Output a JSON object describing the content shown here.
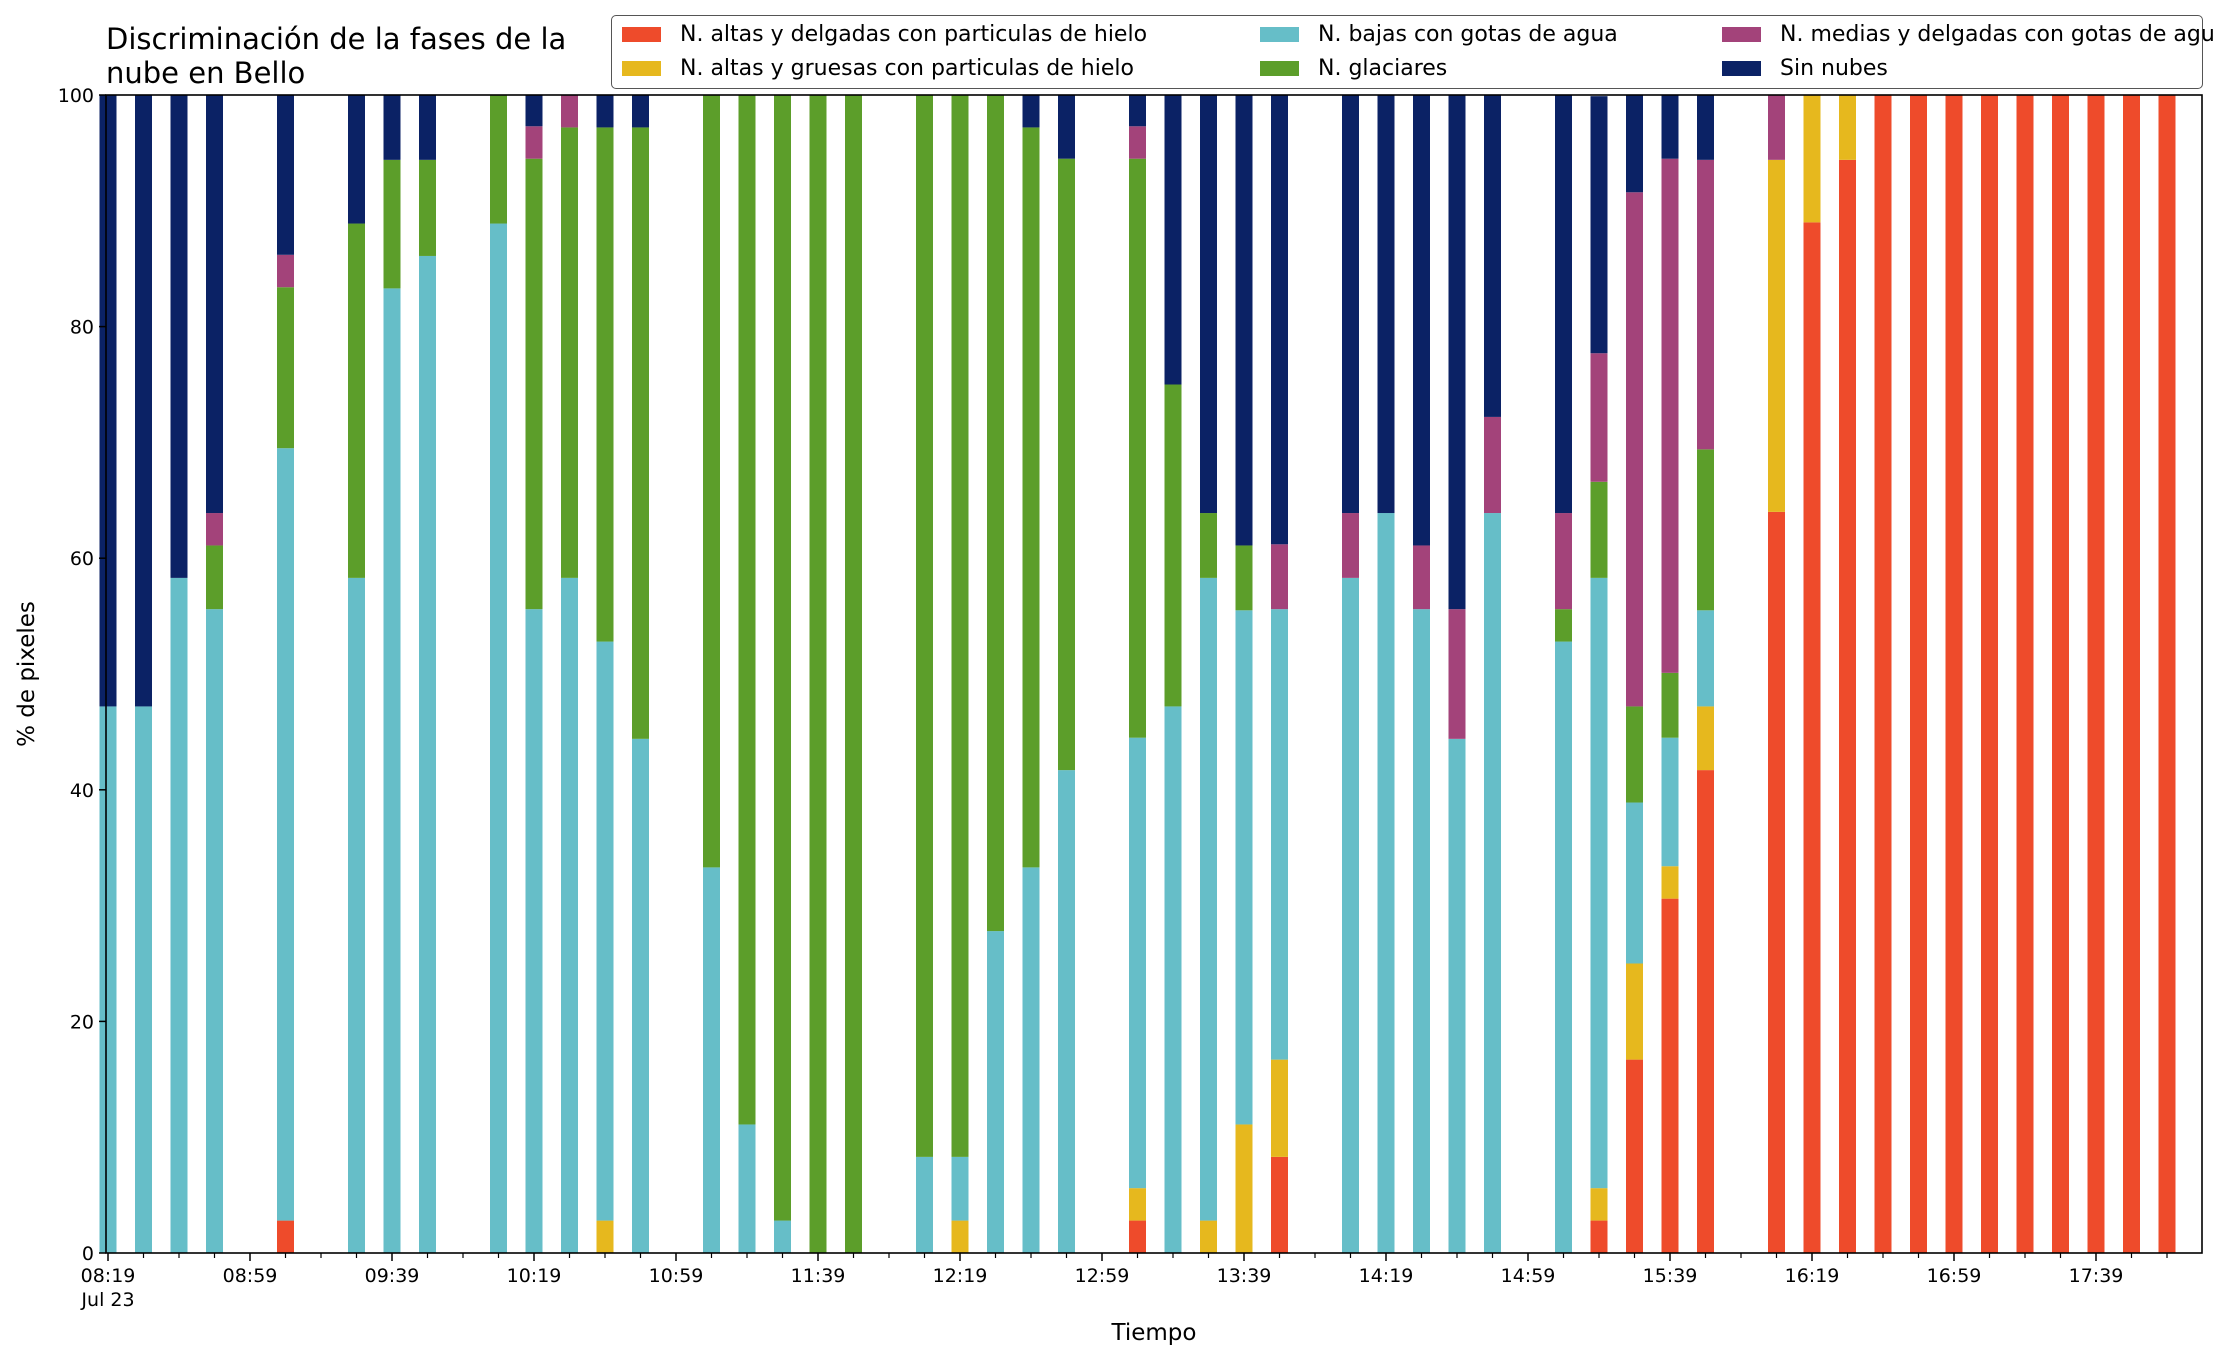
{
  "chart_data": {
    "type": "bar",
    "stacked": true,
    "title": "Discriminación de la fases de la nube en Bello",
    "title_lines": [
      "Discriminación de la fases de la",
      "nube en Bello"
    ],
    "xlabel": "Tiempo",
    "ylabel": "% de pixeles",
    "ylim": [
      0,
      100
    ],
    "yticks": [
      0,
      20,
      40,
      60,
      80,
      100
    ],
    "grid": false,
    "legend_position": "top-right",
    "x_start": "08:19",
    "x_step_minutes": 10,
    "x": [
      "08:19",
      "08:29",
      "08:39",
      "08:49",
      "08:59",
      "09:09",
      "09:19",
      "09:29",
      "09:39",
      "09:49",
      "09:59",
      "10:09",
      "10:19",
      "10:29",
      "10:39",
      "10:49",
      "10:59",
      "11:09",
      "11:19",
      "11:29",
      "11:39",
      "11:49",
      "11:59",
      "12:09",
      "12:19",
      "12:29",
      "12:39",
      "12:49",
      "12:59",
      "13:09",
      "13:19",
      "13:29",
      "13:39",
      "13:49",
      "13:59",
      "14:09",
      "14:19",
      "14:29",
      "14:39",
      "14:49",
      "14:59",
      "15:09",
      "15:19",
      "15:29",
      "15:39",
      "15:49",
      "15:59",
      "16:09",
      "16:19",
      "16:29",
      "16:39",
      "16:49",
      "16:59",
      "17:09",
      "17:19",
      "17:29",
      "17:39",
      "17:49",
      "17:59"
    ],
    "xtick_labels": [
      "08:19",
      "08:59",
      "09:39",
      "10:19",
      "10:59",
      "11:39",
      "12:19",
      "12:59",
      "13:39",
      "14:19",
      "14:59",
      "15:39",
      "16:19",
      "16:59",
      "17:39"
    ],
    "date_label": "Jul 23",
    "series": [
      {
        "name": "N. altas y delgadas con particulas de hielo",
        "color": "#ee4b2b",
        "values": [
          0,
          0,
          0,
          0,
          0,
          2.8,
          0,
          0,
          0,
          0,
          0,
          0,
          0,
          0,
          0,
          0,
          0,
          0,
          0,
          0,
          0,
          0,
          0,
          0,
          0,
          0,
          0,
          0,
          0,
          2.8,
          0,
          0,
          0,
          8.3,
          0,
          0,
          0,
          0,
          0,
          0,
          0,
          0,
          2.8,
          16.7,
          30.6,
          41.7,
          0,
          64,
          89,
          94.4,
          100,
          100,
          100,
          100,
          100,
          100,
          100,
          100,
          100
        ]
      },
      {
        "name": "N. altas y gruesas con particulas de hielo",
        "color": "#e6b81e",
        "values": [
          0,
          0,
          0,
          0,
          0,
          0,
          0,
          0,
          0,
          0,
          0,
          0,
          0,
          0,
          2.8,
          0,
          0,
          0,
          0,
          0,
          0,
          0,
          0,
          0,
          2.8,
          0,
          0,
          0,
          0,
          2.8,
          0,
          2.8,
          11.1,
          8.4,
          0,
          0,
          0,
          0,
          0,
          0,
          0,
          0,
          2.8,
          8.3,
          2.8,
          5.5,
          0,
          30.4,
          11,
          5.6,
          0,
          0,
          0,
          0,
          0,
          0,
          0,
          0,
          0
        ]
      },
      {
        "name": "N. bajas con gotas de agua",
        "color": "#66bec8",
        "values": [
          47.2,
          47.2,
          58.3,
          55.6,
          0,
          66.7,
          0,
          58.3,
          83.3,
          86.1,
          0,
          88.9,
          55.6,
          58.3,
          50,
          44.4,
          0,
          33.3,
          11.1,
          2.8,
          0,
          0,
          0,
          8.3,
          5.5,
          27.8,
          33.3,
          41.7,
          0,
          38.9,
          47.2,
          55.5,
          44.4,
          38.9,
          0,
          58.3,
          63.9,
          55.6,
          44.4,
          63.9,
          0,
          52.8,
          52.7,
          13.9,
          11.1,
          8.3,
          0,
          0,
          0,
          0,
          0,
          0,
          0,
          0,
          0,
          0,
          0,
          0,
          0
        ]
      },
      {
        "name": "N. glaciares",
        "color": "#5c9e2a",
        "values": [
          0,
          0,
          0,
          5.5,
          0,
          13.9,
          0,
          30.6,
          11.1,
          8.3,
          0,
          11.1,
          38.9,
          38.9,
          44.4,
          52.8,
          0,
          66.7,
          88.9,
          97.2,
          100,
          100,
          0,
          91.7,
          91.7,
          72.2,
          63.9,
          52.8,
          0,
          50,
          27.8,
          5.6,
          5.6,
          0,
          0,
          0,
          0,
          0,
          0,
          0,
          0,
          2.8,
          8.3,
          8.3,
          5.6,
          13.9,
          0,
          0,
          0,
          0,
          0,
          0,
          0,
          0,
          0,
          0,
          0,
          0,
          0
        ]
      },
      {
        "name": "N. medias y delgadas con gotas de agua",
        "color": "#a3437a",
        "values": [
          0,
          0,
          0,
          2.8,
          0,
          2.8,
          0,
          0,
          0,
          0,
          0,
          0,
          2.8,
          2.8,
          0,
          0,
          0,
          0,
          0,
          0,
          0,
          0,
          0,
          0,
          0,
          0,
          0,
          0,
          0,
          2.8,
          0,
          0,
          0,
          5.6,
          0,
          5.6,
          0,
          5.5,
          11.2,
          8.3,
          0,
          8.3,
          11.1,
          44.4,
          44.4,
          25,
          0,
          5.6,
          0,
          0,
          0,
          0,
          0,
          0,
          0,
          0,
          0,
          0,
          0
        ]
      },
      {
        "name": "Sin nubes",
        "color": "#0b2265",
        "values": [
          52.8,
          52.8,
          41.7,
          36.1,
          0,
          13.8,
          0,
          11.1,
          5.6,
          5.6,
          0,
          0,
          2.7,
          0,
          2.8,
          2.8,
          0,
          0,
          0,
          0,
          0,
          0,
          0,
          0,
          0,
          0,
          2.8,
          5.5,
          0,
          2.7,
          25,
          36.1,
          38.9,
          38.8,
          0,
          36.1,
          36.1,
          38.9,
          44.4,
          27.8,
          0,
          36.1,
          22.2,
          8.4,
          5.5,
          5.6,
          0,
          0,
          0,
          0,
          0,
          0,
          0,
          0,
          0,
          0,
          0,
          0,
          0
        ]
      }
    ]
  }
}
